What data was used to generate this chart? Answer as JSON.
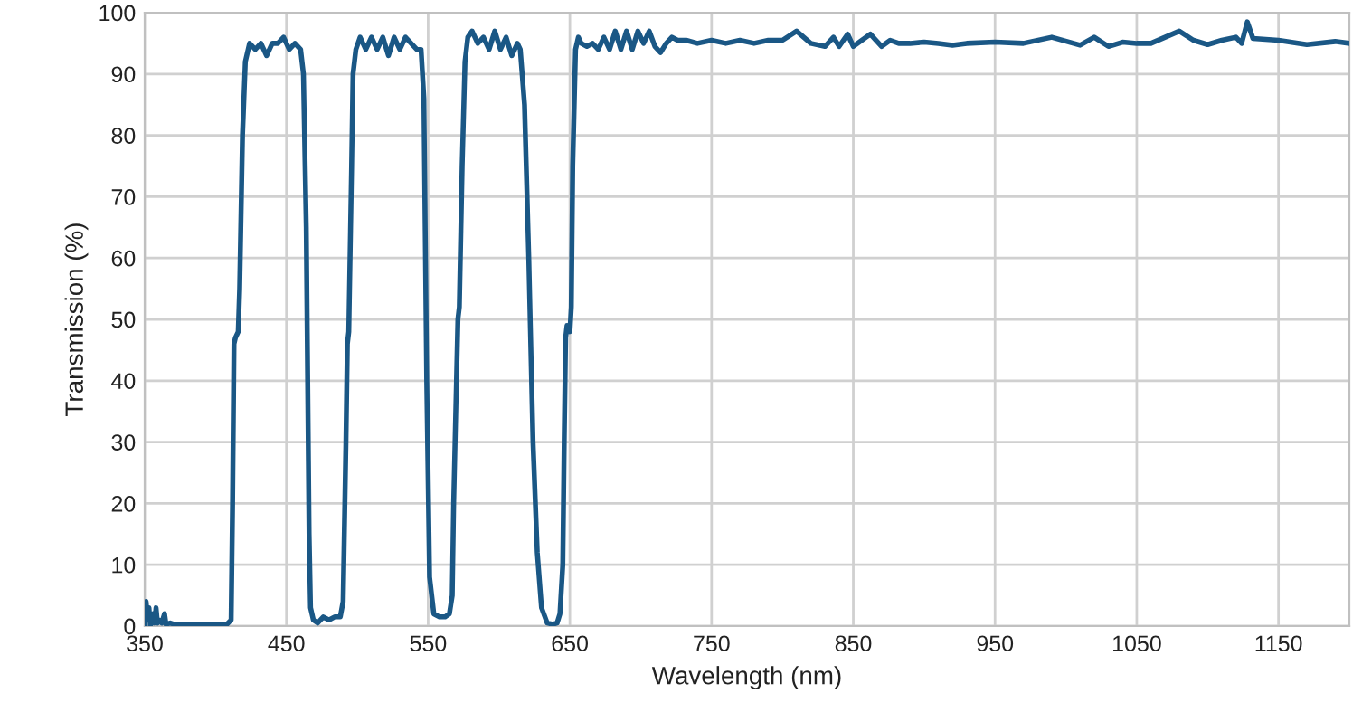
{
  "chart_data": {
    "type": "line",
    "xlabel": "Wavelength (nm)",
    "ylabel": "Transmission (%)",
    "xlim": [
      350,
      1200
    ],
    "ylim": [
      0,
      100
    ],
    "xticks": [
      350,
      450,
      550,
      650,
      750,
      850,
      950,
      1050,
      1150
    ],
    "yticks": [
      0,
      10,
      20,
      30,
      40,
      50,
      60,
      70,
      80,
      90,
      100
    ],
    "grid": true,
    "legend": false,
    "marker": "none",
    "line_style": "solid",
    "series": [
      {
        "color": "#1a5785",
        "x": [
          350,
          351,
          352,
          353,
          354,
          356,
          357,
          358,
          359,
          360,
          362,
          364,
          365,
          368,
          372,
          380,
          390,
          400,
          408,
          411,
          412,
          413,
          414,
          416,
          417,
          419,
          421,
          424,
          428,
          432,
          436,
          440,
          444,
          448,
          452,
          456,
          460,
          462,
          464,
          465,
          466,
          467,
          469,
          472,
          476,
          480,
          484,
          488,
          490,
          492,
          493,
          494,
          496,
          497,
          499,
          502,
          506,
          510,
          514,
          518,
          522,
          526,
          530,
          534,
          538,
          542,
          545,
          547,
          549,
          551,
          554,
          558,
          562,
          565,
          567,
          568,
          570,
          571,
          572,
          574,
          576,
          578,
          581,
          585,
          589,
          593,
          597,
          601,
          605,
          609,
          613,
          615,
          618,
          621,
          624,
          627,
          630,
          634,
          638,
          641,
          643,
          645,
          646,
          647,
          648,
          650,
          651,
          652,
          654,
          656,
          658,
          662,
          666,
          670,
          674,
          678,
          682,
          686,
          690,
          694,
          698,
          702,
          706,
          710,
          714,
          718,
          722,
          726,
          732,
          740,
          750,
          760,
          770,
          780,
          790,
          800,
          810,
          820,
          830,
          836,
          840,
          846,
          850,
          856,
          862,
          870,
          876,
          882,
          890,
          900,
          910,
          920,
          930,
          950,
          970,
          990,
          1010,
          1020,
          1030,
          1040,
          1050,
          1060,
          1070,
          1080,
          1090,
          1100,
          1110,
          1120,
          1124,
          1128,
          1132,
          1150,
          1170,
          1190,
          1200
        ],
        "values": [
          0,
          4,
          1,
          3,
          0,
          2,
          0.5,
          3,
          0.5,
          1,
          0.5,
          2,
          0.3,
          0.5,
          0.2,
          0.3,
          0.2,
          0.2,
          0.3,
          1,
          20,
          46,
          47,
          48,
          55,
          80,
          92,
          95,
          94,
          95,
          93,
          95,
          95,
          96,
          94,
          95,
          94,
          90,
          65,
          40,
          15,
          3,
          1,
          0.5,
          1.5,
          1,
          1.5,
          1.5,
          4,
          30,
          46,
          48,
          75,
          90,
          94,
          96,
          94,
          96,
          94,
          96,
          93,
          96,
          94,
          96,
          95,
          94,
          94,
          86,
          40,
          8,
          2,
          1.5,
          1.5,
          2,
          5,
          20,
          40,
          50,
          52,
          75,
          92,
          96,
          97,
          95,
          96,
          94,
          97,
          94,
          96,
          93,
          95,
          94,
          85,
          60,
          30,
          12,
          3,
          0.5,
          0.3,
          0.5,
          2,
          10,
          30,
          47,
          49,
          48,
          52,
          75,
          94,
          96,
          95,
          94.5,
          95,
          94,
          96,
          94,
          97,
          94,
          97,
          94,
          97,
          95,
          97,
          94.5,
          93.5,
          95,
          96,
          95.5,
          95.5,
          95,
          95.5,
          95,
          95.5,
          95,
          95.5,
          95.5,
          97,
          95,
          94.5,
          96,
          94.5,
          96.5,
          94.5,
          95.5,
          96.5,
          94.5,
          95.5,
          95,
          95,
          95.2,
          95,
          94.7,
          95,
          95.2,
          95,
          96,
          94.7,
          96,
          94.5,
          95.2,
          95,
          95,
          96,
          97,
          95.5,
          94.8,
          95.5,
          96,
          95,
          98.5,
          95.8,
          95.5,
          94.8,
          95.3,
          95
        ]
      }
    ]
  }
}
